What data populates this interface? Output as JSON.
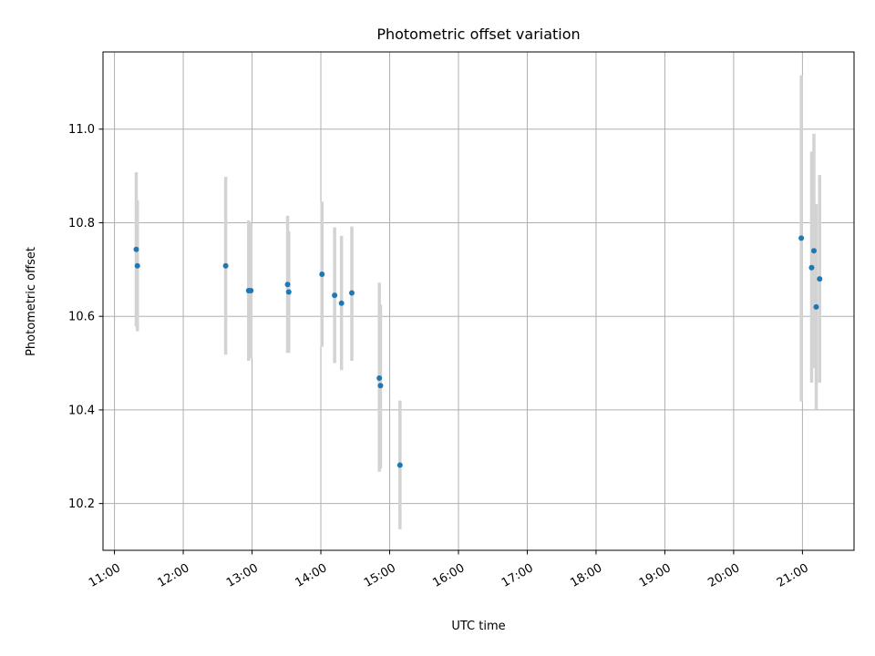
{
  "chart_data": {
    "type": "scatter",
    "title": "Photometric offset variation",
    "xlabel": "UTC time",
    "ylabel": "Photometric offset",
    "xlim": [
      "10:50",
      "21:45"
    ],
    "ylim": [
      10.1,
      11.165
    ],
    "grid": true,
    "x_ticks": [
      "11:00",
      "12:00",
      "13:00",
      "14:00",
      "15:00",
      "16:00",
      "17:00",
      "18:00",
      "19:00",
      "20:00",
      "21:00"
    ],
    "y_ticks": [
      "10.2",
      "10.4",
      "10.6",
      "10.8",
      "11.0"
    ],
    "colors": {
      "point": "#1f77b4",
      "errorbar": "#d3d3d3",
      "grid": "#b0b0b0"
    },
    "points": [
      {
        "x": "11:19",
        "y": 10.743,
        "ylow": 10.578,
        "yhigh": 10.908
      },
      {
        "x": "11:20",
        "y": 10.708,
        "ylow": 10.568,
        "yhigh": 10.848
      },
      {
        "x": "12:37",
        "y": 10.708,
        "ylow": 10.518,
        "yhigh": 10.898
      },
      {
        "x": "12:57",
        "y": 10.655,
        "ylow": 10.505,
        "yhigh": 10.805
      },
      {
        "x": "12:59",
        "y": 10.655,
        "ylow": 10.51,
        "yhigh": 10.8
      },
      {
        "x": "13:31",
        "y": 10.668,
        "ylow": 10.522,
        "yhigh": 10.815
      },
      {
        "x": "13:32",
        "y": 10.652,
        "ylow": 10.522,
        "yhigh": 10.782
      },
      {
        "x": "14:01",
        "y": 10.69,
        "ylow": 10.535,
        "yhigh": 10.845
      },
      {
        "x": "14:12",
        "y": 10.645,
        "ylow": 10.5,
        "yhigh": 10.79
      },
      {
        "x": "14:18",
        "y": 10.628,
        "ylow": 10.485,
        "yhigh": 10.772
      },
      {
        "x": "14:27",
        "y": 10.65,
        "ylow": 10.505,
        "yhigh": 10.792
      },
      {
        "x": "14:51",
        "y": 10.468,
        "ylow": 10.268,
        "yhigh": 10.672
      },
      {
        "x": "14:52",
        "y": 10.452,
        "ylow": 10.275,
        "yhigh": 10.625
      },
      {
        "x": "15:09",
        "y": 10.282,
        "ylow": 10.145,
        "yhigh": 10.42
      },
      {
        "x": "20:59",
        "y": 10.767,
        "ylow": 10.418,
        "yhigh": 11.115
      },
      {
        "x": "21:08",
        "y": 10.704,
        "ylow": 10.458,
        "yhigh": 10.952
      },
      {
        "x": "21:10",
        "y": 10.74,
        "ylow": 10.49,
        "yhigh": 10.99
      },
      {
        "x": "21:12",
        "y": 10.62,
        "ylow": 10.4,
        "yhigh": 10.84
      },
      {
        "x": "21:15",
        "y": 10.68,
        "ylow": 10.458,
        "yhigh": 10.902
      }
    ]
  }
}
